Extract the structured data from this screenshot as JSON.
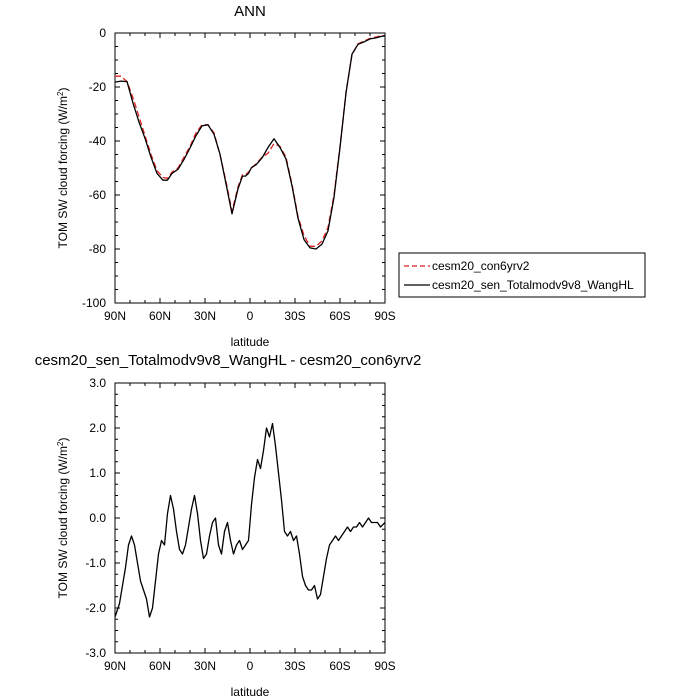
{
  "chart_data": [
    {
      "type": "line",
      "title": "ANN",
      "xlabel": "latitude",
      "ylabel": "TOM SW cloud forcing (W/m",
      "ylabel_sup": "2",
      "ylabel_end": ")",
      "xlim": [
        90,
        -90
      ],
      "ylim": [
        -100,
        0
      ],
      "xticks": [
        90,
        60,
        30,
        0,
        -30,
        -60,
        -90
      ],
      "xtick_labels": [
        "90N",
        "60N",
        "30N",
        "0",
        "30S",
        "60S",
        "90S"
      ],
      "yticks": [
        0,
        -20,
        -40,
        -60,
        -80,
        -100
      ],
      "ytick_labels": [
        "0",
        "-20",
        "-40",
        "-60",
        "-80",
        "-100"
      ],
      "legend_position": "right",
      "x": [
        90,
        86,
        82,
        78,
        74,
        70,
        66,
        62,
        58,
        55,
        52,
        48,
        44,
        40,
        36,
        32,
        28,
        24,
        20,
        16,
        12,
        8,
        5,
        3,
        1,
        -1,
        -4,
        -8,
        -12,
        -16,
        -20,
        -24,
        -28,
        -32,
        -36,
        -40,
        -44,
        -48,
        -52,
        -56,
        -60,
        -64,
        -68,
        -72,
        -76,
        -80,
        -84,
        -88,
        -90
      ],
      "series": [
        {
          "name": "cesm20_con6yrv2",
          "color": "#dd2222",
          "dash": true,
          "values": [
            -16,
            -16,
            -18,
            -24,
            -31,
            -38,
            -45,
            -51,
            -53.5,
            -53.8,
            -51.5,
            -50,
            -46,
            -42,
            -37,
            -34,
            -34,
            -37,
            -45,
            -55,
            -66,
            -57,
            -52.5,
            -52.5,
            -51.5,
            -50,
            -48.5,
            -46,
            -44.5,
            -41,
            -42,
            -46,
            -56,
            -68,
            -75,
            -79,
            -79,
            -77,
            -72,
            -60,
            -42,
            -22,
            -8,
            -4,
            -3,
            -2,
            -1.5,
            -1,
            -1
          ]
        },
        {
          "name": "cesm20_sen_Totalmodv9v8_WangHL",
          "color": "#000000",
          "dash": false,
          "values": [
            -18.2,
            -17.8,
            -18,
            -26,
            -33,
            -39,
            -46,
            -52,
            -54.5,
            -54.5,
            -52,
            -50.5,
            -46.8,
            -42.6,
            -38,
            -34.4,
            -34,
            -37.5,
            -44.9,
            -55.8,
            -67,
            -57.7,
            -53,
            -53,
            -52,
            -49.8,
            -48.8,
            -46.3,
            -42.4,
            -39.2,
            -42.4,
            -46.7,
            -56.6,
            -68.6,
            -76.5,
            -79.6,
            -80,
            -78.2,
            -73.3,
            -60.9,
            -42.4,
            -22.2,
            -7.8,
            -4.2,
            -3.3,
            -2.2,
            -1.8,
            -1.2,
            -1
          ]
        }
      ]
    },
    {
      "type": "line",
      "title": "cesm20_sen_Totalmodv9v8_WangHL - cesm20_con6yrv2",
      "xlabel": "latitude",
      "ylabel": "TOM SW cloud forcing (W/m",
      "ylabel_sup": "2",
      "ylabel_end": ")",
      "xlim": [
        90,
        -90
      ],
      "ylim": [
        -3,
        3
      ],
      "xticks": [
        90,
        60,
        30,
        0,
        -30,
        -60,
        -90
      ],
      "xtick_labels": [
        "90N",
        "60N",
        "30N",
        "0",
        "30S",
        "60S",
        "90S"
      ],
      "yticks": [
        3,
        2,
        1,
        0,
        -1,
        -2,
        -3
      ],
      "ytick_labels": [
        "3.0",
        "2.0",
        "1.0",
        "0.0",
        "-1.0",
        "-2.0",
        "-3.0"
      ],
      "x": [
        90,
        87,
        85,
        83,
        81,
        79,
        77,
        75,
        73,
        71,
        69,
        67,
        65,
        63,
        61,
        59,
        57,
        55,
        53,
        51,
        49,
        47,
        45,
        43,
        41,
        39,
        37,
        35,
        33,
        31,
        29,
        27,
        25,
        23,
        21,
        19,
        17,
        15,
        13,
        11,
        9,
        7,
        5,
        3,
        1,
        -1,
        -3,
        -5,
        -7,
        -9,
        -11,
        -13,
        -15,
        -17,
        -19,
        -21,
        -23,
        -25,
        -27,
        -29,
        -31,
        -33,
        -35,
        -37,
        -39,
        -41,
        -43,
        -45,
        -47,
        -49,
        -51,
        -53,
        -55,
        -57,
        -59,
        -61,
        -63,
        -65,
        -67,
        -69,
        -71,
        -73,
        -75,
        -77,
        -79,
        -81,
        -83,
        -85,
        -87,
        -90
      ],
      "series": [
        {
          "name": "",
          "color": "#000000",
          "dash": false,
          "values": [
            -2.2,
            -1.9,
            -1.5,
            -1.1,
            -0.6,
            -0.4,
            -0.6,
            -1.0,
            -1.4,
            -1.6,
            -1.8,
            -2.2,
            -2.0,
            -1.4,
            -0.8,
            -0.5,
            -0.6,
            0.1,
            0.5,
            0.2,
            -0.3,
            -0.7,
            -0.8,
            -0.6,
            -0.2,
            0.2,
            0.5,
            0.1,
            -0.5,
            -0.9,
            -0.8,
            -0.4,
            -0.1,
            0.0,
            -0.6,
            -0.8,
            -0.3,
            -0.1,
            -0.5,
            -0.8,
            -0.6,
            -0.5,
            -0.7,
            -0.6,
            -0.5,
            0.3,
            0.9,
            1.3,
            1.1,
            1.5,
            2.0,
            1.8,
            2.1,
            1.6,
            1.0,
            0.4,
            -0.3,
            -0.4,
            -0.3,
            -0.5,
            -0.4,
            -0.8,
            -1.3,
            -1.5,
            -1.6,
            -1.6,
            -1.5,
            -1.8,
            -1.7,
            -1.3,
            -0.9,
            -0.6,
            -0.5,
            -0.4,
            -0.5,
            -0.4,
            -0.3,
            -0.2,
            -0.3,
            -0.2,
            -0.2,
            -0.1,
            -0.2,
            -0.1,
            0.0,
            -0.1,
            -0.1,
            -0.1,
            -0.2,
            -0.1
          ]
        }
      ]
    }
  ]
}
